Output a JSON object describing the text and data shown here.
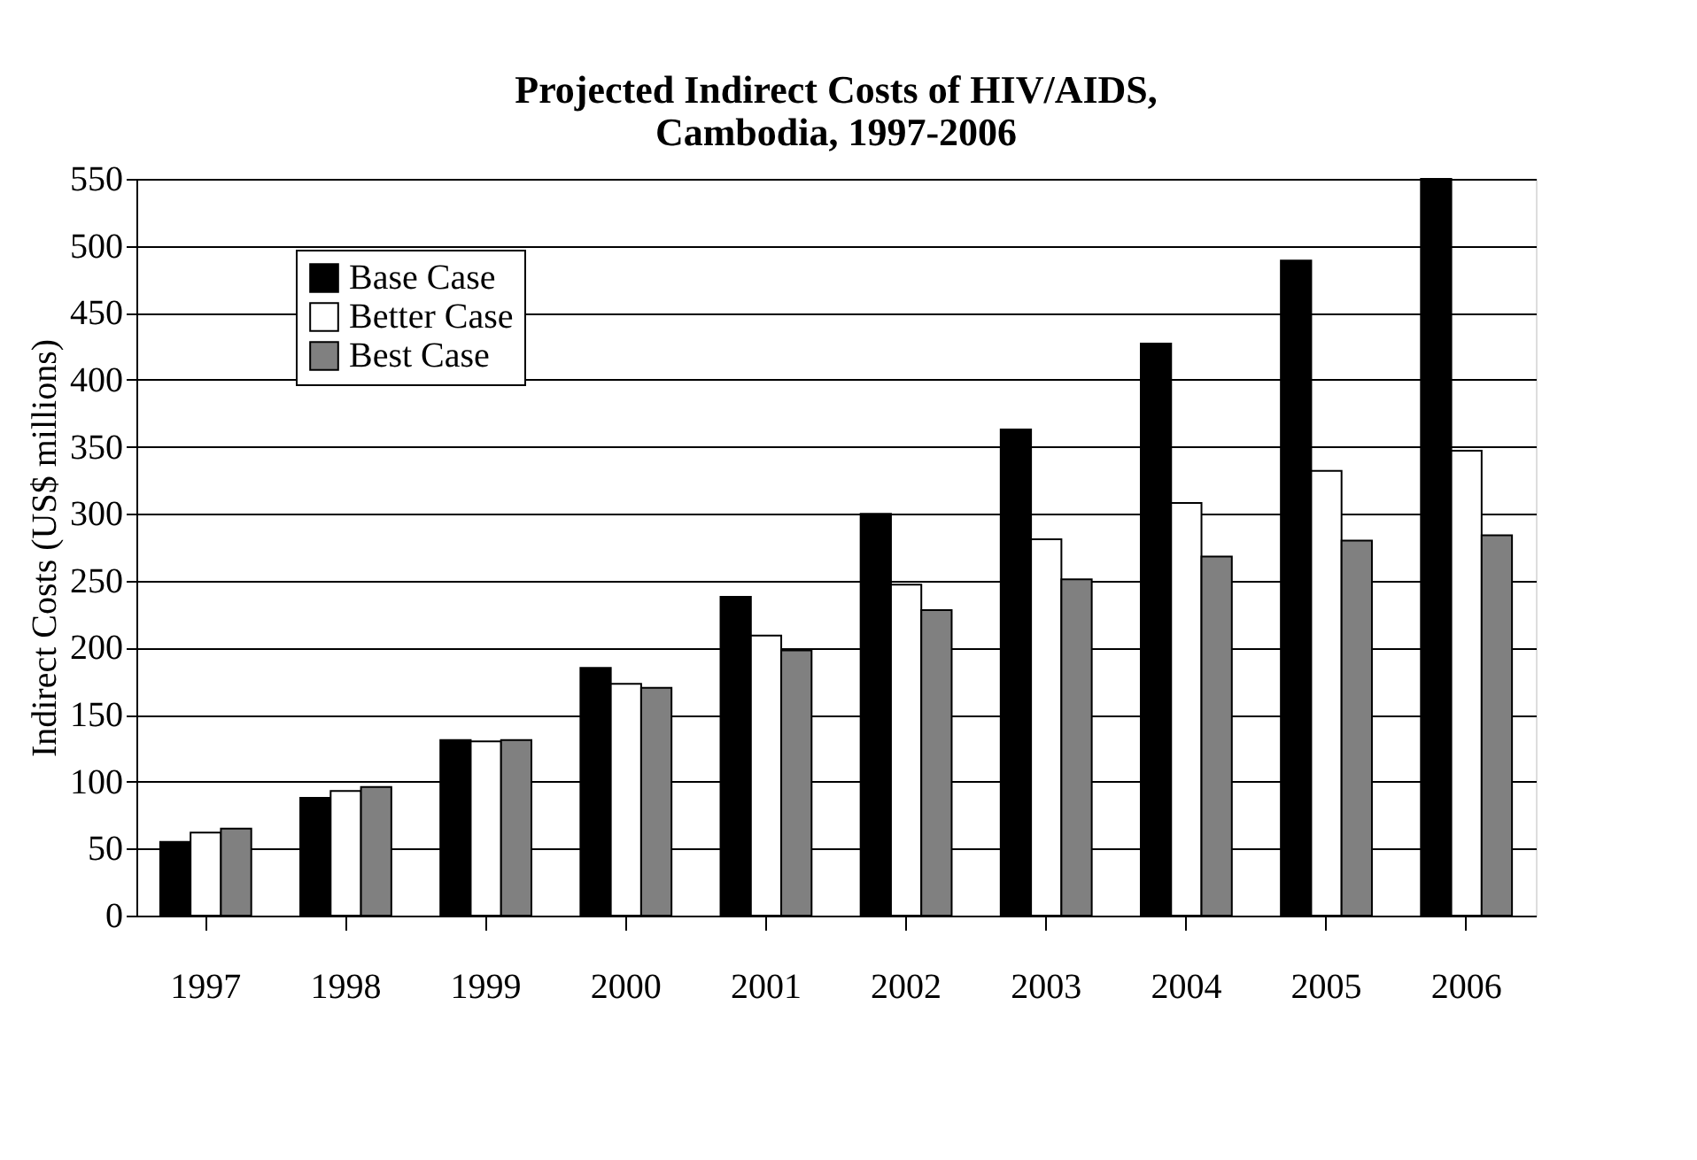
{
  "chart_data": {
    "type": "bar",
    "title": "Projected Indirect Costs of HIV/AIDS,",
    "subtitle": "Cambodia, 1997-2006",
    "ylabel": "Indirect Costs (US$ millions)",
    "categories": [
      "1997",
      "1998",
      "1999",
      "2000",
      "2001",
      "2002",
      "2003",
      "2004",
      "2005",
      "2006"
    ],
    "series": [
      {
        "name": "Base Case",
        "color": "#000000",
        "values": [
          55,
          88,
          131,
          185,
          238,
          300,
          363,
          427,
          489,
          550
        ]
      },
      {
        "name": "Better Case",
        "color": "#ffffff",
        "values": [
          62,
          93,
          130,
          173,
          209,
          247,
          281,
          308,
          332,
          347
        ]
      },
      {
        "name": "Best Case",
        "color": "#808080",
        "values": [
          65,
          96,
          131,
          170,
          198,
          228,
          251,
          268,
          280,
          284
        ]
      }
    ],
    "ylim": [
      0,
      550
    ],
    "yticks": [
      0,
      50,
      100,
      150,
      200,
      250,
      300,
      350,
      400,
      450,
      500,
      550
    ],
    "grid": "y",
    "legend": "top left"
  }
}
